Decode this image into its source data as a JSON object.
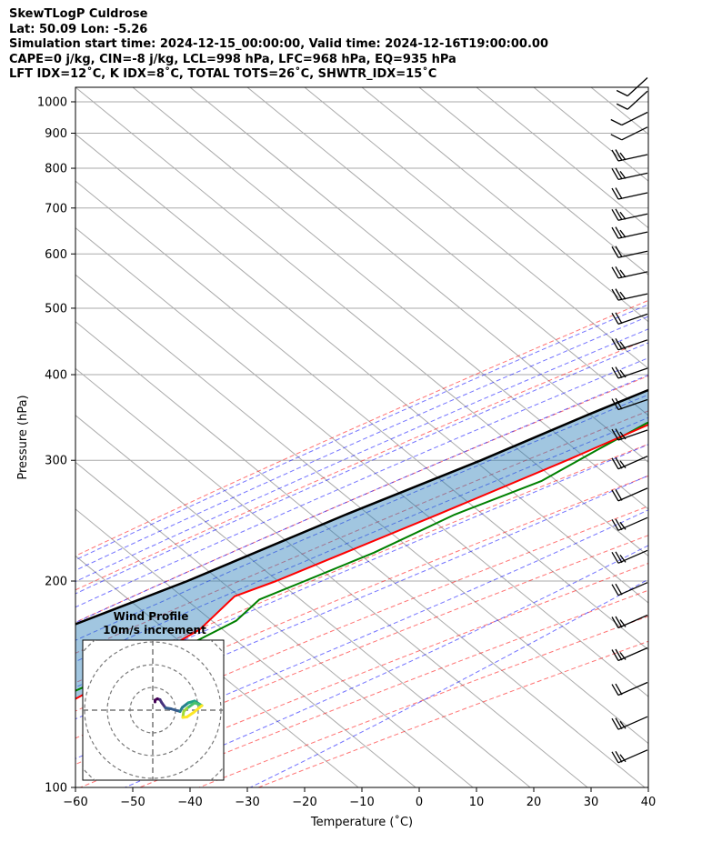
{
  "header": {
    "line1": "SkewTLogP Culdrose",
    "line2": "Lat: 50.09   Lon: -5.26",
    "line3": "Simulation start time: 2024-12-15_00:00:00, Valid time: 2024-12-16T19:00:00.00",
    "line4": "CAPE=0 j/kg, CIN=-8 j/kg, LCL=998 hPa, LFC=968 hPa, EQ=935 hPa",
    "line5": "LFT IDX=12˚C, K IDX=8˚C, TOTAL TOTS=26˚C, SHWTR_IDX=15˚C"
  },
  "chart_data": {
    "type": "line",
    "subtype": "skew-t log-p",
    "xlabel": "Temperature (˚C)",
    "ylabel": "Pressure (hPa)",
    "xlim": [
      -60,
      40
    ],
    "ylim": [
      1050,
      100
    ],
    "yscale": "log",
    "grid": true,
    "x_ticks": [
      "−60",
      "−50",
      "−40",
      "−30",
      "−20",
      "−10",
      "0",
      "10",
      "20",
      "30",
      "40"
    ],
    "y_ticks": [
      "100",
      "200",
      "300",
      "400",
      "500",
      "600",
      "700",
      "800",
      "900",
      "1000"
    ],
    "colors": {
      "temperature": "#ff0000",
      "dewpoint": "#008000",
      "parcel": "#000000",
      "cape_fill": "#1f77b4",
      "dry_adiabat": "#ff0000",
      "moist_adiabat": "#0000ff",
      "mixing_ratio": "#8a2be2",
      "isotherm": "#999999"
    },
    "series": [
      {
        "key": "temperature",
        "pressure": [
          1030,
          1000,
          950,
          900,
          850,
          800,
          750,
          700,
          650,
          600,
          550,
          500,
          450,
          400,
          350,
          300,
          250,
          200,
          190,
          170,
          150,
          130,
          115,
          100
        ],
        "values": [
          11.5,
          10.5,
          9.6,
          8.5,
          7.0,
          5.5,
          3.0,
          0.0,
          -3.5,
          -6.5,
          -10.5,
          -15.0,
          -21.0,
          -28.0,
          -35.5,
          -44.0,
          -55.0,
          -69.0,
          -73.0,
          -72.0,
          -75.5,
          -80.0,
          -86.0,
          -93.0
        ]
      },
      {
        "key": "dewpoint",
        "pressure": [
          1030,
          1000,
          960,
          920,
          880,
          850,
          820,
          780,
          740,
          700,
          650,
          600,
          550,
          500,
          450,
          400,
          370,
          340,
          310,
          280,
          250,
          220,
          200,
          188,
          175,
          160,
          140,
          125,
          100
        ],
        "values": [
          10.0,
          7.0,
          3.0,
          -1.0,
          -7.0,
          -14.0,
          -22.0,
          -28.0,
          -26.0,
          -16.0,
          -4.0,
          -4.0,
          -10.0,
          -16.5,
          -22.5,
          -27.0,
          -32.0,
          -38.0,
          -41.0,
          -44.0,
          -52.0,
          -58.0,
          -64.0,
          -68.0,
          -67.5,
          -71.0,
          -80.0,
          -86.0,
          -97.0
        ]
      },
      {
        "key": "parcel",
        "pressure": [
          1030,
          1000,
          950,
          900,
          850,
          800,
          750,
          700,
          650,
          600,
          550,
          500,
          450,
          400,
          350,
          300,
          250,
          200,
          150,
          100
        ],
        "values": [
          10.5,
          9.5,
          8.0,
          6.0,
          3.5,
          0.5,
          -3.0,
          -7.0,
          -11.5,
          -16.0,
          -21.5,
          -27.5,
          -34.0,
          -41.5,
          -50.0,
          -59.0,
          -71.0,
          -84.5,
          -105.0,
          -140.0
        ]
      }
    ],
    "wind_barbs": {
      "pressure": [
        1020,
        975,
        925,
        880,
        830,
        780,
        730,
        680,
        640,
        600,
        560,
        520,
        480,
        440,
        400,
        360,
        325,
        295,
        265,
        240,
        215,
        193,
        173,
        155,
        138,
        123,
        110
      ]
    },
    "inset": {
      "title": "Wind Profile",
      "subtitle": "10m/s increment",
      "hodograph": [
        [
          0.5,
          1.8
        ],
        [
          0.5,
          2.2
        ],
        [
          1.0,
          2.5
        ],
        [
          1.6,
          2.3
        ],
        [
          2.0,
          1.6
        ],
        [
          2.8,
          0.5
        ],
        [
          4.0,
          0.3
        ],
        [
          6.0,
          -0.3
        ],
        [
          6.5,
          0.6
        ],
        [
          7.8,
          1.6
        ],
        [
          9.2,
          2.0
        ],
        [
          10.8,
          1.0
        ],
        [
          9.2,
          1.6
        ],
        [
          7.5,
          0.4
        ],
        [
          6.8,
          -0.3
        ],
        [
          6.6,
          -1.6
        ],
        [
          7.5,
          -1.5
        ],
        [
          9.0,
          -0.5
        ],
        [
          10.8,
          1.0
        ]
      ]
    }
  }
}
